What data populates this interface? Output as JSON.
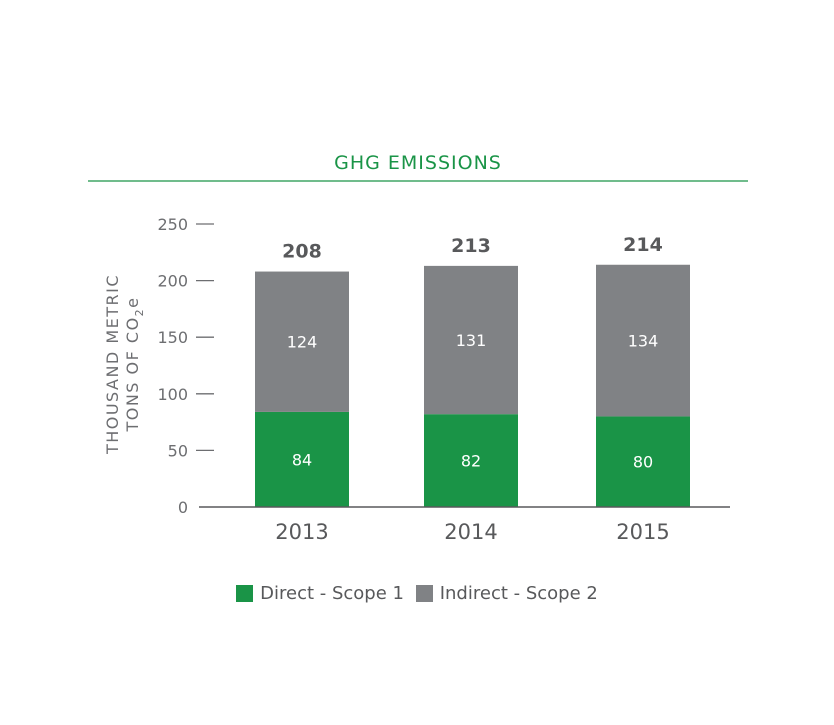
{
  "colors": {
    "accent": "#1a9447",
    "direct": "#1a9447",
    "indirect": "#808285"
  },
  "chart_data": {
    "type": "bar",
    "stacked": true,
    "title": "GHG EMISSIONS",
    "ylabel": [
      "THOUSAND METRIC",
      "TONS OF CO",
      "2",
      "e"
    ],
    "categories": [
      "2013",
      "2014",
      "2015"
    ],
    "ylim": [
      0,
      250
    ],
    "yticks": [
      0,
      50,
      100,
      150,
      200,
      250
    ],
    "series": [
      {
        "name": "Direct - Scope 1",
        "values": [
          84,
          82,
          80
        ],
        "labels": [
          "84",
          "82",
          "80"
        ]
      },
      {
        "name": "Indirect - Scope 2",
        "values": [
          124,
          131,
          134
        ],
        "labels": [
          "124",
          "131",
          "134"
        ]
      }
    ],
    "totals": [
      "208",
      "213",
      "214"
    ],
    "legend_position": "bottom",
    "grid": false
  }
}
